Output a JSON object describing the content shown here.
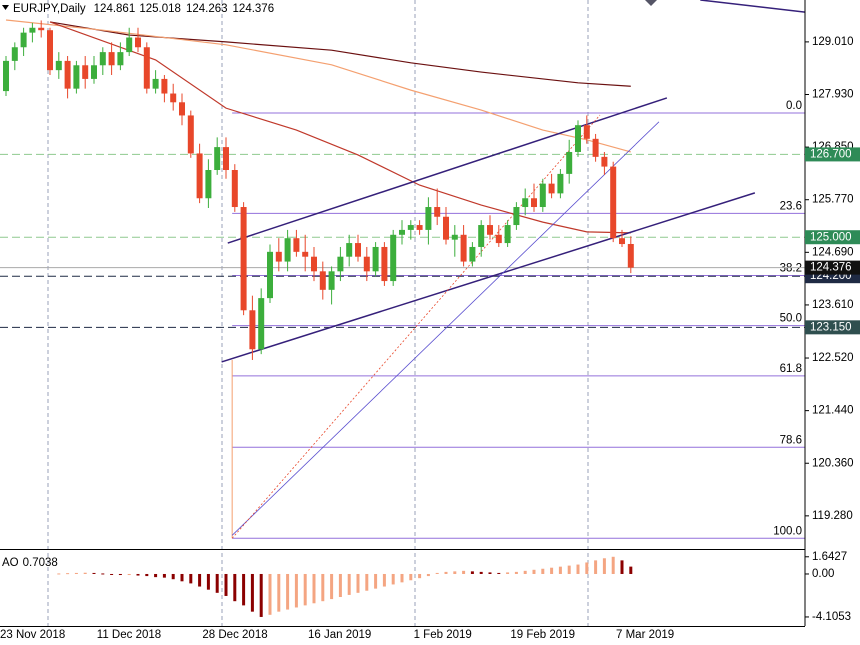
{
  "chart_data": {
    "type": "candlestick",
    "symbol": "EURJPY,Daily",
    "categories": [
      "23 Nov 2018",
      null,
      null,
      null,
      null,
      null,
      null,
      null,
      null,
      null,
      null,
      "11 Dec 2018",
      null,
      null,
      null,
      null,
      null,
      null,
      null,
      null,
      null,
      null,
      null,
      "28 Dec 2018",
      null,
      null,
      null,
      null,
      null,
      null,
      null,
      null,
      null,
      null,
      null,
      "16 Jan 2019",
      null,
      null,
      null,
      null,
      null,
      null,
      null,
      null,
      null,
      null,
      null,
      "1 Feb 2019",
      null,
      null,
      null,
      null,
      null,
      null,
      null,
      null,
      null,
      null,
      "19 Feb 2019",
      null,
      null,
      null,
      null,
      null,
      null,
      null,
      null,
      null,
      null,
      null,
      "7 Mar 2019",
      null
    ],
    "open": [
      128.0,
      128.62,
      128.9,
      129.2,
      129.3,
      129.25,
      128.43,
      128.62,
      128.05,
      128.53,
      128.25,
      128.53,
      128.8,
      128.53,
      128.8,
      129.1,
      128.9,
      128.05,
      128.25,
      127.95,
      127.77,
      127.5,
      126.72,
      125.8,
      126.38,
      126.85,
      126.38,
      125.62,
      123.5,
      122.7,
      123.75,
      124.7,
      124.5,
      124.98,
      124.7,
      124.6,
      124.3,
      123.92,
      124.3,
      124.6,
      124.88,
      124.6,
      124.3,
      124.8,
      124.1,
      125.05,
      125.15,
      125.25,
      125.15,
      125.62,
      125.42,
      124.95,
      125.05,
      124.5,
      124.8,
      125.25,
      125.05,
      124.88,
      125.25,
      125.62,
      125.8,
      125.62,
      126.1,
      125.9,
      126.3,
      126.75,
      127.3,
      127.02,
      126.65,
      126.45,
      124.98,
      124.861
    ],
    "high": [
      128.72,
      129.0,
      129.3,
      129.4,
      129.45,
      129.3,
      128.8,
      128.72,
      128.62,
      128.72,
      128.72,
      128.9,
      129.0,
      129.0,
      129.3,
      129.3,
      129.0,
      128.43,
      128.33,
      128.15,
      127.95,
      127.6,
      126.92,
      126.6,
      127.05,
      127.05,
      126.5,
      125.72,
      123.8,
      123.95,
      124.85,
      124.98,
      125.15,
      125.15,
      125.05,
      124.8,
      124.5,
      124.4,
      124.8,
      125.05,
      125.05,
      124.8,
      124.9,
      124.9,
      125.15,
      125.35,
      125.35,
      125.35,
      125.82,
      126.0,
      125.62,
      125.25,
      125.25,
      124.9,
      125.35,
      125.45,
      125.25,
      125.35,
      125.72,
      126.0,
      126.1,
      126.2,
      126.3,
      126.4,
      127.0,
      127.4,
      127.5,
      127.12,
      126.75,
      126.55,
      125.15,
      125.018
    ],
    "low": [
      127.9,
      128.43,
      128.72,
      129.0,
      129.1,
      128.33,
      128.25,
      127.85,
      127.95,
      128.05,
      128.15,
      128.33,
      128.33,
      128.43,
      128.72,
      128.8,
      127.95,
      127.95,
      127.77,
      127.6,
      127.3,
      126.63,
      125.7,
      125.6,
      126.28,
      126.2,
      125.52,
      123.4,
      122.48,
      122.6,
      123.65,
      124.3,
      124.3,
      124.6,
      124.3,
      124.1,
      123.72,
      123.62,
      124.1,
      124.4,
      124.5,
      124.1,
      124.2,
      124.0,
      124.0,
      124.85,
      124.95,
      125.05,
      124.85,
      125.25,
      124.85,
      124.6,
      124.4,
      124.4,
      124.6,
      124.95,
      124.8,
      124.8,
      125.15,
      125.45,
      125.52,
      125.52,
      125.8,
      125.8,
      126.1,
      126.65,
      126.92,
      126.55,
      126.28,
      124.9,
      124.8,
      124.263
    ],
    "close": [
      128.62,
      128.9,
      129.2,
      129.3,
      129.25,
      128.43,
      128.62,
      128.05,
      128.53,
      128.25,
      128.53,
      128.8,
      128.53,
      128.8,
      129.1,
      128.9,
      128.05,
      128.25,
      127.95,
      127.77,
      127.5,
      126.72,
      125.8,
      126.38,
      126.85,
      126.38,
      125.62,
      123.5,
      122.7,
      123.75,
      124.7,
      124.5,
      124.98,
      124.7,
      124.6,
      124.3,
      123.92,
      124.3,
      124.6,
      124.88,
      124.6,
      124.3,
      124.8,
      124.1,
      125.05,
      125.15,
      125.25,
      125.15,
      125.62,
      125.42,
      124.95,
      125.05,
      124.5,
      124.8,
      125.25,
      125.05,
      124.88,
      125.25,
      125.62,
      125.8,
      125.62,
      126.1,
      125.9,
      126.3,
      126.75,
      127.3,
      127.02,
      126.65,
      126.45,
      124.98,
      124.86,
      124.376
    ],
    "up_color": "#3cae3c",
    "down_color": "#e8472a",
    "ylim": [
      118.62,
      129.87
    ],
    "yticks": [
      {
        "value": 129.01,
        "label": "129.010"
      },
      {
        "value": 127.93,
        "label": "127.930"
      },
      {
        "value": 126.85,
        "label": "126.850"
      },
      {
        "value": 125.77,
        "label": "125.770"
      },
      {
        "value": 124.69,
        "label": "124.690"
      },
      {
        "value": 123.61,
        "label": "123.610"
      },
      {
        "value": 122.52,
        "label": "122.520"
      },
      {
        "value": 121.44,
        "label": "121.440"
      },
      {
        "value": 120.36,
        "label": "120.360"
      },
      {
        "value": 119.28,
        "label": "119.280"
      }
    ],
    "moving_averages": [
      {
        "color": "#6b1010",
        "x": [
          5,
          14,
          25,
          37,
          46,
          54,
          65,
          71
        ],
        "values": [
          129.42,
          129.15,
          129.01,
          128.84,
          128.58,
          128.39,
          128.17,
          128.1
        ]
      },
      {
        "color": "#f4a070",
        "x": [
          0,
          11,
          25,
          37,
          46,
          54,
          61,
          66,
          71
        ],
        "values": [
          129.46,
          129.25,
          128.95,
          128.54,
          128.02,
          127.61,
          127.2,
          127.0,
          126.75
        ]
      },
      {
        "color": "#c0392b",
        "x": [
          5,
          17,
          25,
          33,
          40,
          47,
          54,
          61,
          66,
          71
        ],
        "values": [
          129.42,
          128.64,
          127.65,
          127.2,
          126.69,
          126.07,
          125.66,
          125.31,
          125.11,
          125.09
        ]
      }
    ],
    "trendlines": [
      {
        "color": "#35207a",
        "width": 1.5,
        "dash": "none",
        "x": [
          25.2,
          75.1
        ],
        "values": [
          124.88,
          127.86
        ]
      },
      {
        "color": "#35207a",
        "width": 1.5,
        "dash": "none",
        "x": [
          24.5,
          85.1
        ],
        "values": [
          122.44,
          125.91
        ]
      },
      {
        "color": "#5a4fcf",
        "width": 0.8,
        "dash": "none",
        "x": [
          25.7,
          74.2
        ],
        "values": [
          118.88,
          127.37
        ]
      },
      {
        "color": "#e8472a",
        "width": 0.8,
        "dash": "2,2",
        "x": [
          25.7,
          67.5
        ],
        "values": [
          118.82,
          127.51
        ]
      },
      {
        "color": "#35207a",
        "width": 1.5,
        "dash": "none",
        "x": [
          78.9,
          90.8
        ],
        "values": [
          129.87,
          129.62
        ]
      }
    ],
    "fibonacci": {
      "color": "#9370db",
      "x_start": 25.7,
      "high": 127.55,
      "low": 118.82,
      "levels": [
        {
          "value": 0,
          "label": "0.0"
        },
        23.6,
        38.2,
        {
          "value": 50,
          "label": "50.0"
        },
        61.8,
        78.6,
        {
          "value": 100,
          "label": "100.0"
        }
      ]
    },
    "price_levels": [
      {
        "value": 126.7,
        "label": "126.700",
        "color": "#2e8b57",
        "line_color": "#8fc98f"
      },
      {
        "value": 125.0,
        "label": "125.000",
        "color": "#2e8b57",
        "line_color": "#8fc98f"
      },
      {
        "value": 124.2,
        "label": "124.200",
        "color": "#1f2a44",
        "line_color": "#1f2a44"
      },
      {
        "value": 123.15,
        "label": "123.150",
        "color": "#2f4f4f",
        "line_color": "#1f2a44"
      }
    ],
    "last_price_color": "#111111",
    "indicator": {
      "type": "bar",
      "name": "AO",
      "up_color": "#f4a582",
      "down_color": "#8b0000",
      "ylim": [
        -4.97,
        2.1
      ],
      "yticks": [
        1.6427,
        {
          "value": 0,
          "label": "0.00"
        },
        -4.1053
      ],
      "values": [
        null,
        null,
        null,
        null,
        null,
        null,
        0.05,
        0.08,
        0.1,
        0.12,
        0.1,
        0.05,
        -0.05,
        -0.1,
        -0.1,
        -0.15,
        -0.2,
        -0.3,
        -0.35,
        -0.5,
        -0.7,
        -0.9,
        -1.2,
        -1.5,
        -1.8,
        -2.1,
        -2.6,
        -3.0,
        -3.6,
        -4.1053,
        -3.9,
        -3.6,
        -3.4,
        -3.2,
        -3.0,
        -2.8,
        -2.6,
        -2.4,
        -2.2,
        -2.0,
        -1.8,
        -1.6,
        -1.4,
        -1.2,
        -1.0,
        -0.8,
        -0.6,
        -0.4,
        -0.2,
        0.1,
        0.2,
        0.25,
        0.3,
        0.25,
        0.2,
        0.15,
        0.1,
        0.15,
        0.2,
        0.3,
        0.4,
        0.5,
        0.6,
        0.7,
        0.8,
        0.9,
        1.1,
        1.3,
        1.5,
        1.6427,
        1.3,
        0.7038
      ]
    }
  }
}
